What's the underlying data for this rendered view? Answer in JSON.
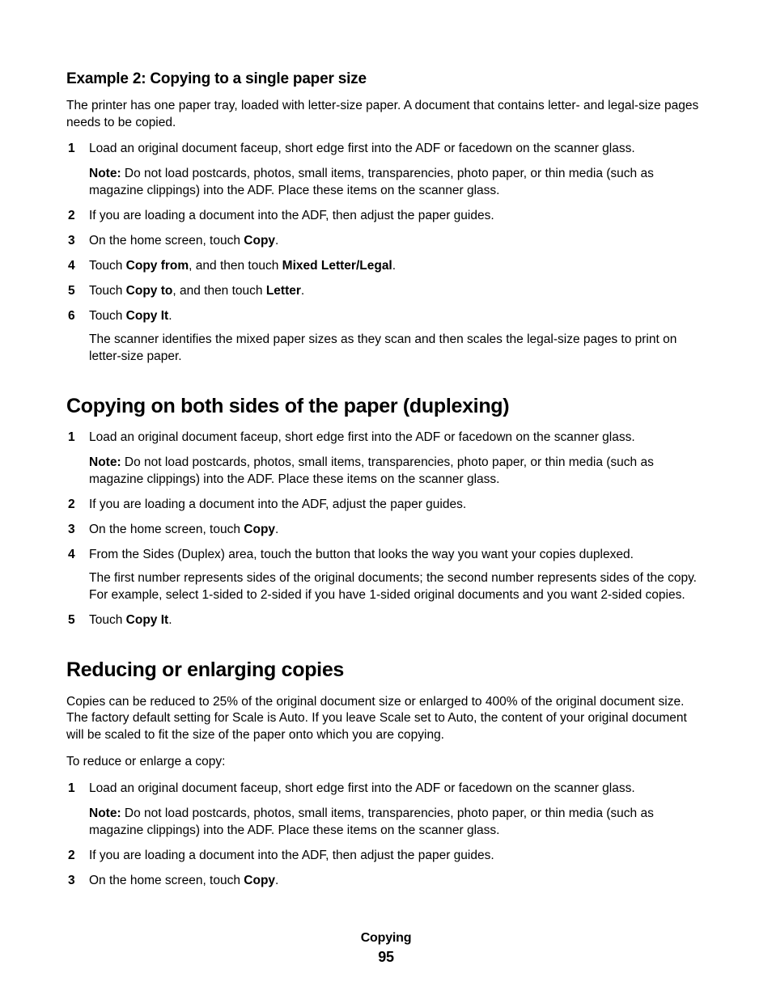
{
  "example2": {
    "heading": "Example 2: Copying to a single paper size",
    "intro": "The printer has one paper tray, loaded with letter-size paper. A document that contains letter- and legal-size pages needs to be copied.",
    "steps": [
      {
        "text_before": "Load an original document faceup, short edge first into the ADF or facedown on the scanner glass.",
        "note_label": "Note:",
        "note_text": " Do not load postcards, photos, small items, transparencies, photo paper, or thin media (such as magazine clippings) into the ADF. Place these items on the scanner glass."
      },
      {
        "text_before": "If you are loading a document into the ADF, then adjust the paper guides."
      },
      {
        "parts": [
          {
            "t": "On the home screen, touch "
          },
          {
            "t": "Copy",
            "b": true
          },
          {
            "t": "."
          }
        ]
      },
      {
        "parts": [
          {
            "t": "Touch "
          },
          {
            "t": "Copy from",
            "b": true
          },
          {
            "t": ", and then touch "
          },
          {
            "t": "Mixed Letter/Legal",
            "b": true
          },
          {
            "t": "."
          }
        ]
      },
      {
        "parts": [
          {
            "t": "Touch "
          },
          {
            "t": "Copy to",
            "b": true
          },
          {
            "t": ", and then touch "
          },
          {
            "t": "Letter",
            "b": true
          },
          {
            "t": "."
          }
        ]
      },
      {
        "parts": [
          {
            "t": "Touch "
          },
          {
            "t": "Copy It",
            "b": true
          },
          {
            "t": "."
          }
        ],
        "followup": "The scanner identifies the mixed paper sizes as they scan and then scales the legal-size pages to print on letter-size paper."
      }
    ]
  },
  "duplex": {
    "heading": "Copying on both sides of the paper (duplexing)",
    "steps": [
      {
        "text_before": "Load an original document faceup, short edge first into the ADF or facedown on the scanner glass.",
        "note_label": "Note:",
        "note_text": " Do not load postcards, photos, small items, transparencies, photo paper, or thin media (such as magazine clippings) into the ADF. Place these items on the scanner glass."
      },
      {
        "text_before": "If you are loading a document into the ADF, adjust the paper guides."
      },
      {
        "parts": [
          {
            "t": "On the home screen, touch "
          },
          {
            "t": "Copy",
            "b": true
          },
          {
            "t": "."
          }
        ]
      },
      {
        "text_before": "From the Sides (Duplex) area, touch the button that looks the way you want your copies duplexed.",
        "followup": "The first number represents sides of the original documents; the second number represents sides of the copy. For example, select 1-sided to 2-sided if you have 1-sided original documents and you want 2-sided copies."
      },
      {
        "parts": [
          {
            "t": "Touch "
          },
          {
            "t": "Copy It",
            "b": true
          },
          {
            "t": "."
          }
        ]
      }
    ]
  },
  "reduce": {
    "heading": "Reducing or enlarging copies",
    "intro": "Copies can be reduced to 25% of the original document size or enlarged to 400% of the original document size. The factory default setting for Scale is Auto. If you leave Scale set to Auto, the content of your original document will be scaled to fit the size of the paper onto which you are copying.",
    "lead": "To reduce or enlarge a copy:",
    "steps": [
      {
        "text_before": "Load an original document faceup, short edge first into the ADF or facedown on the scanner glass.",
        "note_label": "Note:",
        "note_text": " Do not load postcards, photos, small items, transparencies, photo paper, or thin media (such as magazine clippings) into the ADF. Place these items on the scanner glass."
      },
      {
        "text_before": "If you are loading a document into the ADF, then adjust the paper guides."
      },
      {
        "parts": [
          {
            "t": "On the home screen, touch "
          },
          {
            "t": "Copy",
            "b": true
          },
          {
            "t": "."
          }
        ]
      }
    ]
  },
  "footer": {
    "section": "Copying",
    "page": "95"
  }
}
